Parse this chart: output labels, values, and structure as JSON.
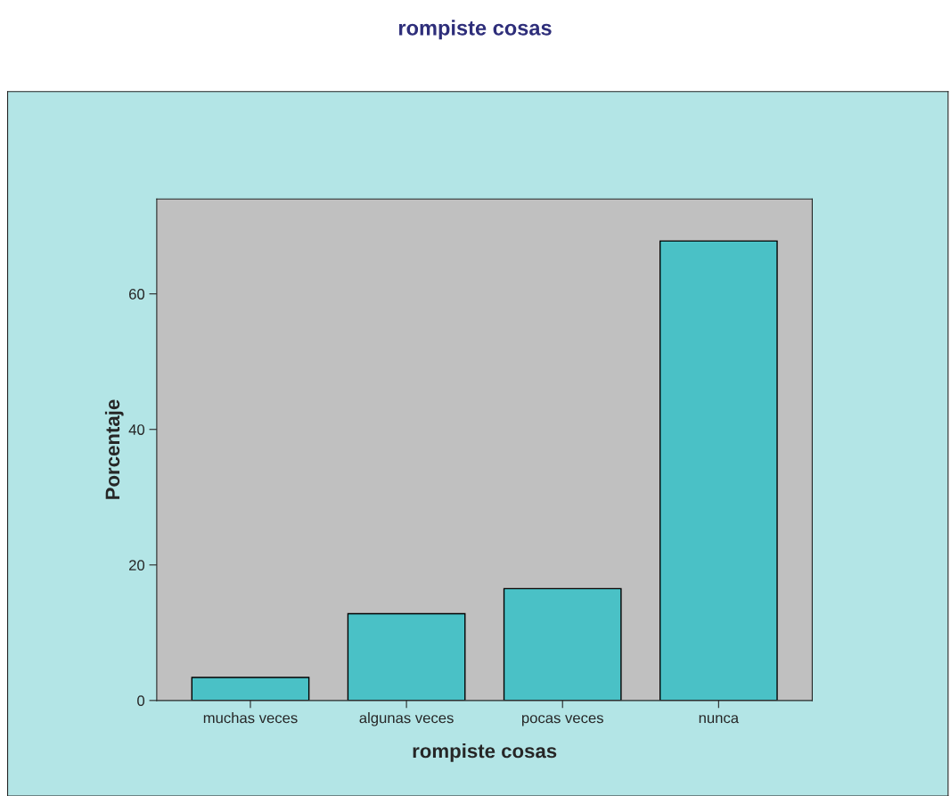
{
  "chart_data": {
    "type": "bar",
    "title": "rompiste cosas",
    "xlabel": "rompiste cosas",
    "ylabel": "Porcentaje",
    "categories": [
      "muchas veces",
      "algunas veces",
      "pocas veces",
      "nunca"
    ],
    "values": [
      3.4,
      12.8,
      16.5,
      67.8
    ],
    "color": "#4ac1c6",
    "ylim": [
      0,
      74
    ],
    "yticks": [
      0,
      20,
      40,
      60
    ],
    "grid": false,
    "legend": false
  }
}
